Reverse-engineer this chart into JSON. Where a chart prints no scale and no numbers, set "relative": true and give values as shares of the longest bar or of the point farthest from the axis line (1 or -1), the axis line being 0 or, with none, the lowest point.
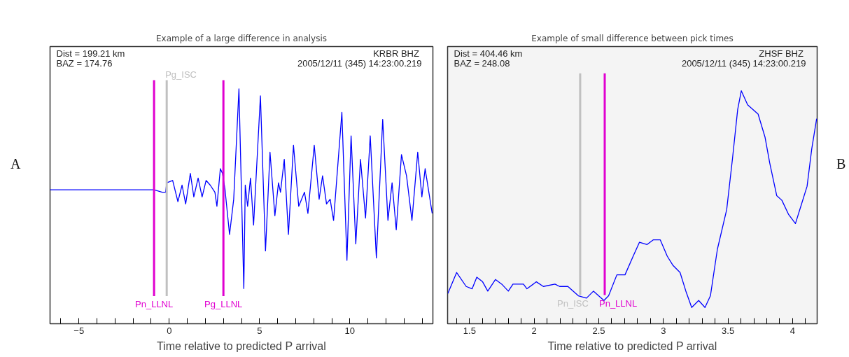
{
  "chart_data": [
    {
      "type": "line",
      "title": "Example of a large difference in analysis",
      "xlabel": "Time relative to predicted P arrival",
      "relative": true,
      "tick_labels": "x",
      "xlim": [
        -6.6,
        14.6
      ],
      "xticks": [
        {
          "value": -6,
          "label": null
        },
        -5,
        {
          "value": -4,
          "label": null
        },
        {
          "value": -3,
          "label": null
        },
        {
          "value": -2,
          "label": null
        },
        {
          "value": -1,
          "label": null
        },
        0,
        {
          "value": 1,
          "label": null
        },
        {
          "value": 2,
          "label": null
        },
        {
          "value": 3,
          "label": null
        },
        {
          "value": 4,
          "label": null
        },
        5,
        {
          "value": 6,
          "label": null
        },
        {
          "value": 7,
          "label": null
        },
        {
          "value": 8,
          "label": null
        },
        {
          "value": 9,
          "label": null
        },
        10,
        {
          "value": 11,
          "label": null
        },
        {
          "value": 12,
          "label": null
        },
        {
          "value": 13,
          "label": null
        },
        {
          "value": 14,
          "label": null
        }
      ],
      "annotations": [
        "Dist = 199.21 km",
        "BAZ = 174.76",
        "KRBR  BHZ",
        "2005/12/11 (345) 14:23:00.219",
        "A"
      ],
      "ref_lines": [
        {
          "axis": "x",
          "value": -0.84,
          "label": "Pn_LLNL",
          "color": "#e000d0"
        },
        {
          "axis": "x",
          "value": -0.14,
          "label": "Pg_ISC",
          "color": "#c0c0c0"
        },
        {
          "axis": "x",
          "value": 3.0,
          "label": "Pg_LLNL",
          "color": "#e000d0"
        }
      ],
      "series": [
        {
          "color": "#0000ff",
          "x": [
            -6.6,
            -0.84,
            -0.39,
            -0.2,
            -0.14,
            0.19,
            0.48,
            0.71,
            0.91,
            1.17,
            1.36,
            1.6,
            1.82,
            2.04,
            2.27,
            2.53,
            2.64,
            2.83,
            2.95,
            3.09,
            3.34,
            3.57,
            3.86,
            4.13,
            4.21,
            4.34,
            4.5,
            4.67,
            5.05,
            5.33,
            5.58,
            5.85,
            6.05,
            6.16,
            6.37,
            6.6,
            6.88,
            7.17,
            7.49,
            7.68,
            8.03,
            8.3,
            8.49,
            8.71,
            8.91,
            9.1,
            9.56,
            9.84,
            10.07,
            10.33,
            10.59,
            10.87,
            11.13,
            11.47,
            11.82,
            12.11,
            12.34,
            12.57,
            12.86,
            13.14,
            13.44,
            13.76,
            13.99,
            14.17,
            14.56
          ],
          "values": [
            0.57,
            0.57,
            0.56,
            0.56,
            0.6,
            0.61,
            0.52,
            0.59,
            0.51,
            0.64,
            0.54,
            0.62,
            0.54,
            0.61,
            0.59,
            0.56,
            0.5,
            0.66,
            0.64,
            0.57,
            0.38,
            0.53,
            1.0,
            0.15,
            0.59,
            0.5,
            0.62,
            0.42,
            0.97,
            0.31,
            0.73,
            0.46,
            0.6,
            0.56,
            0.7,
            0.38,
            0.76,
            0.5,
            0.56,
            0.47,
            0.76,
            0.53,
            0.63,
            0.51,
            0.53,
            0.44,
            0.9,
            0.27,
            0.8,
            0.34,
            0.7,
            0.45,
            0.8,
            0.28,
            0.87,
            0.44,
            0.6,
            0.4,
            0.72,
            0.63,
            0.44,
            0.73,
            0.54,
            0.66,
            0.47
          ]
        }
      ]
    },
    {
      "type": "line",
      "title": "Example of small difference between pick times",
      "xlabel": "Time relative to predicted P arrival",
      "relative": true,
      "tick_labels": "x",
      "xlim": [
        1.33,
        4.19
      ],
      "xticks": [
        {
          "value": 1.4,
          "label": null
        },
        1.5,
        {
          "value": 1.6,
          "label": null
        },
        {
          "value": 1.7,
          "label": null
        },
        {
          "value": 1.8,
          "label": null
        },
        {
          "value": 1.9,
          "label": null
        },
        2,
        {
          "value": 2.1,
          "label": null
        },
        {
          "value": 2.2,
          "label": null
        },
        {
          "value": 2.3,
          "label": null
        },
        {
          "value": 2.4,
          "label": null
        },
        2.5,
        {
          "value": 2.6,
          "label": null
        },
        {
          "value": 2.7,
          "label": null
        },
        {
          "value": 2.8,
          "label": null
        },
        {
          "value": 2.9,
          "label": null
        },
        3,
        {
          "value": 3.1,
          "label": null
        },
        {
          "value": 3.2,
          "label": null
        },
        {
          "value": 3.3,
          "label": null
        },
        {
          "value": 3.4,
          "label": null
        },
        3.5,
        {
          "value": 3.6,
          "label": null
        },
        {
          "value": 3.7,
          "label": null
        },
        {
          "value": 3.8,
          "label": null
        },
        {
          "value": 3.9,
          "label": null
        },
        4,
        {
          "value": 4.1,
          "label": null
        }
      ],
      "annotations": [
        "Dist = 404.46 km",
        "BAZ = 248.08",
        "ZHSF  BHZ",
        "2005/12/11 (345) 14:23:00.219",
        "B"
      ],
      "ref_lines": [
        {
          "axis": "x",
          "value": 2.356,
          "label": "Pn_ISC",
          "color": "#c0c0c0"
        },
        {
          "axis": "x",
          "value": 2.546,
          "label": "Pn_LLNL",
          "color": "#e000d0"
        }
      ],
      "series": [
        {
          "color": "#0000ff",
          "x": [
            1.332,
            1.4,
            1.474,
            1.52,
            1.556,
            1.601,
            1.641,
            1.7,
            1.749,
            1.8,
            1.836,
            1.917,
            1.944,
            2.017,
            2.071,
            2.161,
            2.197,
            2.261,
            2.342,
            2.405,
            2.459,
            2.54,
            2.576,
            2.64,
            2.703,
            2.766,
            2.815,
            2.874,
            2.921,
            2.976,
            3.03,
            3.075,
            3.129,
            3.174,
            3.219,
            3.273,
            3.322,
            3.364,
            3.418,
            3.49,
            3.535,
            3.575,
            3.603,
            3.652,
            3.733,
            3.787,
            3.823,
            3.877,
            3.917,
            3.968,
            4.022,
            4.067,
            4.112,
            4.148,
            4.186
          ],
          "values": [
            0.13,
            0.22,
            0.16,
            0.15,
            0.2,
            0.18,
            0.14,
            0.19,
            0.17,
            0.14,
            0.17,
            0.17,
            0.15,
            0.18,
            0.16,
            0.17,
            0.16,
            0.16,
            0.12,
            0.11,
            0.14,
            0.1,
            0.12,
            0.21,
            0.21,
            0.29,
            0.35,
            0.34,
            0.36,
            0.36,
            0.29,
            0.25,
            0.22,
            0.14,
            0.07,
            0.1,
            0.07,
            0.12,
            0.32,
            0.49,
            0.71,
            0.92,
            1.0,
            0.94,
            0.9,
            0.8,
            0.69,
            0.55,
            0.53,
            0.47,
            0.43,
            0.51,
            0.59,
            0.75,
            0.88
          ]
        }
      ]
    }
  ]
}
